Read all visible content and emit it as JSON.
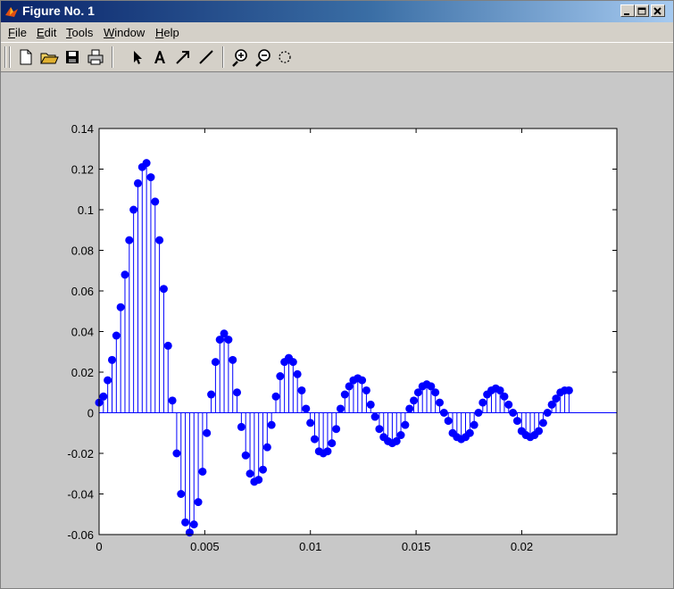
{
  "window": {
    "title": "Figure No. 1",
    "controls": [
      "minimize",
      "maximize",
      "close"
    ]
  },
  "menu": {
    "items": [
      {
        "label": "File",
        "underline": "F",
        "rest": "ile"
      },
      {
        "label": "Edit",
        "underline": "E",
        "rest": "dit"
      },
      {
        "label": "Tools",
        "underline": "T",
        "rest": "ools"
      },
      {
        "label": "Window",
        "underline": "W",
        "rest": "indow"
      },
      {
        "label": "Help",
        "underline": "H",
        "rest": "elp"
      }
    ]
  },
  "toolbar": {
    "buttons": [
      "new-file-icon",
      "open-folder-icon",
      "save-icon",
      "print-icon",
      "select-arrow-icon",
      "insert-text-icon",
      "insert-arrow-icon",
      "insert-line-icon",
      "zoom-in-icon",
      "zoom-out-icon",
      "rotate-icon"
    ]
  },
  "colors": {
    "stem": "#0000ff",
    "axes_bg": "#ffffff",
    "figure_bg": "#c8c8c8"
  },
  "chart_data": {
    "type": "stem",
    "title": "",
    "xlabel": "",
    "ylabel": "",
    "xlim": [
      0,
      0.0245
    ],
    "ylim": [
      -0.06,
      0.14
    ],
    "xticks": [
      0,
      0.005,
      0.01,
      0.015,
      0.02
    ],
    "xtick_labels": [
      "0",
      "0.005",
      "0.01",
      "0.015",
      "0.02"
    ],
    "yticks": [
      -0.06,
      -0.04,
      -0.02,
      0,
      0.02,
      0.04,
      0.06,
      0.08,
      0.1,
      0.12,
      0.14
    ],
    "ytick_labels": [
      "-0.06",
      "-0.04",
      "-0.02",
      "0",
      "0.02",
      "0.04",
      "0.06",
      "0.08",
      "0.1",
      "0.12",
      "0.14"
    ],
    "x_step": 0.000204,
    "y": [
      0.005,
      0.008,
      0.016,
      0.026,
      0.038,
      0.052,
      0.068,
      0.085,
      0.1,
      0.113,
      0.121,
      0.123,
      0.116,
      0.104,
      0.085,
      0.061,
      0.033,
      0.006,
      -0.02,
      -0.04,
      -0.054,
      -0.059,
      -0.055,
      -0.044,
      -0.029,
      -0.01,
      0.009,
      0.025,
      0.036,
      0.039,
      0.036,
      0.026,
      0.01,
      -0.007,
      -0.021,
      -0.03,
      -0.034,
      -0.033,
      -0.028,
      -0.017,
      -0.006,
      0.008,
      0.018,
      0.025,
      0.027,
      0.025,
      0.019,
      0.011,
      0.002,
      -0.005,
      -0.013,
      -0.019,
      -0.02,
      -0.019,
      -0.015,
      -0.008,
      0.002,
      0.009,
      0.013,
      0.016,
      0.017,
      0.016,
      0.011,
      0.004,
      -0.002,
      -0.008,
      -0.012,
      -0.014,
      -0.015,
      -0.014,
      -0.011,
      -0.006,
      0.002,
      0.006,
      0.01,
      0.013,
      0.014,
      0.013,
      0.01,
      0.005,
      0.0,
      -0.004,
      -0.01,
      -0.012,
      -0.013,
      -0.012,
      -0.01,
      -0.006,
      0.0,
      0.005,
      0.009,
      0.011,
      0.012,
      0.011,
      0.008,
      0.004,
      0.0,
      -0.004,
      -0.009,
      -0.011,
      -0.012,
      -0.011,
      -0.009,
      -0.005,
      0.0,
      0.004,
      0.007,
      0.01,
      0.011,
      0.011
    ]
  }
}
